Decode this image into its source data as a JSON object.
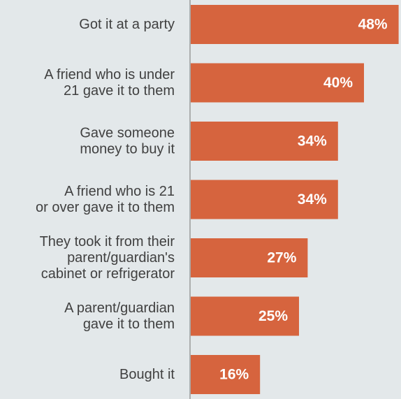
{
  "chart_data": {
    "type": "bar",
    "orientation": "horizontal",
    "categories": [
      "Got it at a party",
      "A friend who is under 21 gave it to them",
      "Gave someone money to buy it",
      "A friend who is 21 or over gave it to them",
      "They took it from their parent/guardian's cabinet or refrigerator",
      "A parent/guardian gave it to them",
      "Bought it"
    ],
    "category_lines": [
      [
        "Got it at a party"
      ],
      [
        "A friend who is under",
        "21 gave it to them"
      ],
      [
        "Gave someone",
        "money to buy it"
      ],
      [
        "A friend who is 21",
        "or over gave it to them"
      ],
      [
        "They took it from their",
        "parent/guardian's",
        "cabinet or refrigerator"
      ],
      [
        "A parent/guardian",
        "gave it to them"
      ],
      [
        "Bought it"
      ]
    ],
    "values": [
      48,
      40,
      34,
      34,
      27,
      25,
      16
    ],
    "value_labels": [
      "48%",
      "40%",
      "34%",
      "34%",
      "27%",
      "25%",
      "16%"
    ],
    "xlim": [
      0,
      50
    ],
    "bar_color": "#d6643e",
    "axis_color": "#9a9a9a",
    "label_color": "#404040",
    "grid": false,
    "legend": "none"
  }
}
